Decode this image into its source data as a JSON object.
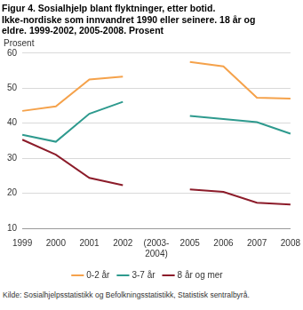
{
  "chart_data": {
    "type": "line",
    "title": "Figur 4. Sosialhjelp blant flyktninger, etter botid.",
    "subtitle": [
      "Ikke-nordiske som innvandret 1990 eller seinere. 18 år og",
      "eldre. 1999-2002, 2005-2008. Prosent"
    ],
    "y_label": "Prosent",
    "source": "Kilde: Sosialhjelpsstatistikk og Befolkningsstatistikk, Statistisk sentralbyrå.",
    "categories": [
      "1999",
      "2000",
      "2001",
      "2002",
      "(2003-2004)",
      "2005",
      "2006",
      "2007",
      "2008"
    ],
    "series": [
      {
        "name": "0-2 år",
        "color": "#f5a24b",
        "values": [
          43.5,
          44.8,
          52.5,
          53.3,
          null,
          57.5,
          56.2,
          47.3,
          47.0
        ]
      },
      {
        "name": "3-7 år",
        "color": "#2e9a8e",
        "values": [
          36.7,
          34.7,
          42.7,
          46.1,
          null,
          42.1,
          41.2,
          40.3,
          37.0
        ]
      },
      {
        "name": "8 år og mer",
        "color": "#8c1c2a",
        "values": [
          35.3,
          31.0,
          24.4,
          22.3,
          null,
          21.1,
          20.4,
          17.3,
          16.8
        ]
      }
    ],
    "ylim": [
      10,
      60
    ],
    "yticks": [
      10,
      20,
      30,
      40,
      50,
      60
    ],
    "grid": true,
    "legend": "bottom"
  }
}
